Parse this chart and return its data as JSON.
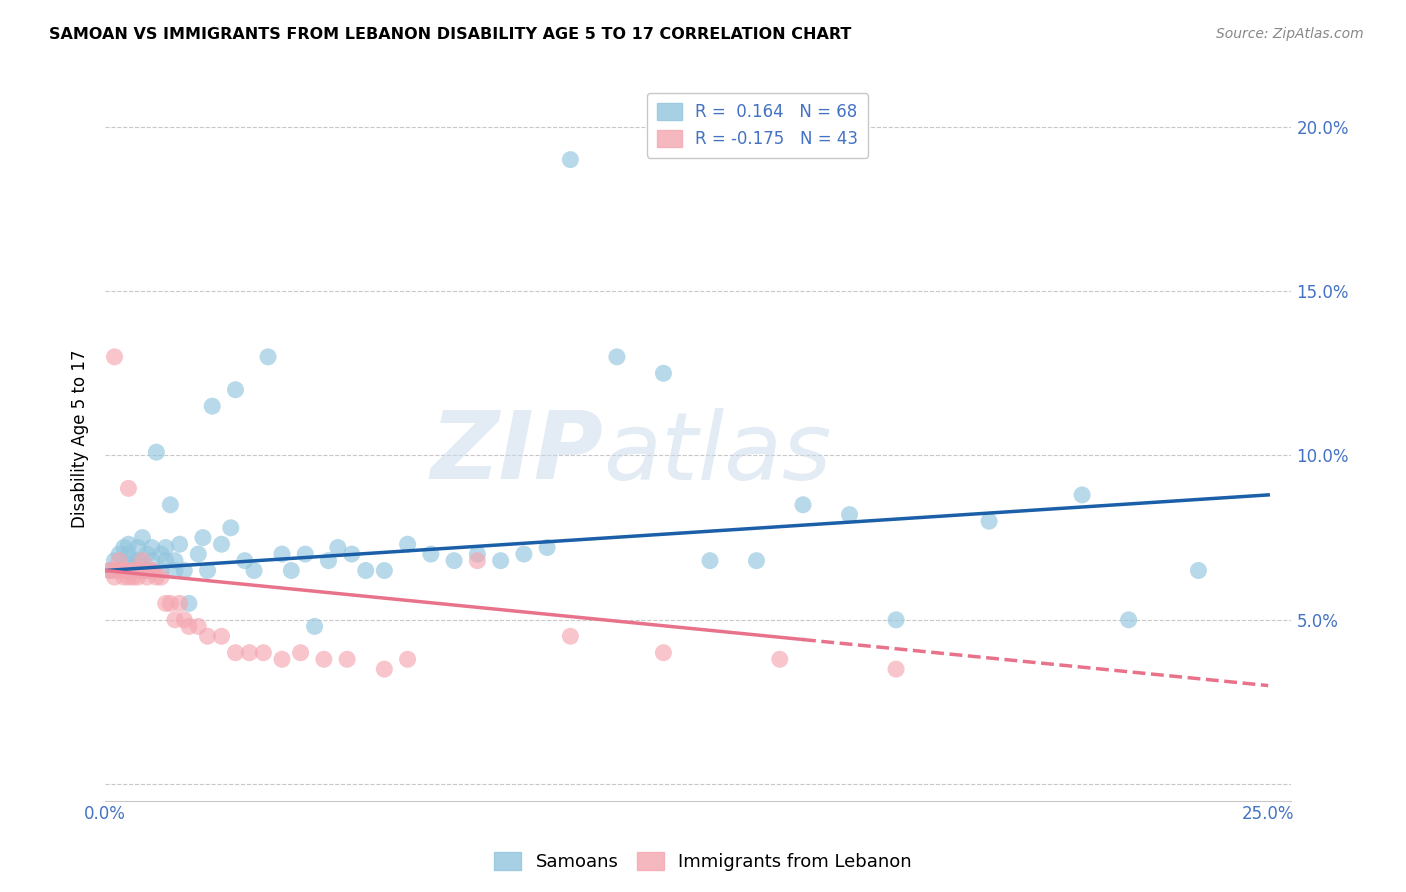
{
  "title": "SAMOAN VS IMMIGRANTS FROM LEBANON DISABILITY AGE 5 TO 17 CORRELATION CHART",
  "source": "Source: ZipAtlas.com",
  "ylabel": "Disability Age 5 to 17",
  "xlim": [
    0.0,
    0.255
  ],
  "ylim": [
    -0.005,
    0.215
  ],
  "yticks": [
    0.0,
    0.05,
    0.1,
    0.15,
    0.2
  ],
  "xticks": [
    0.0,
    0.05,
    0.1,
    0.15,
    0.2,
    0.25
  ],
  "xtick_labels": [
    "0.0%",
    "",
    "",
    "",
    "",
    "25.0%"
  ],
  "ytick_labels": [
    "",
    "5.0%",
    "10.0%",
    "15.0%",
    "20.0%"
  ],
  "legend_samoan": "R =  0.164   N = 68",
  "legend_lebanon": "R = -0.175   N = 43",
  "samoan_color": "#92c5de",
  "lebanon_color": "#f4a6b0",
  "trendline_samoan_color": "#1a5fa8",
  "trendline_lebanon_color": "#e8728a",
  "watermark_zip": "ZIP",
  "watermark_atlas": "atlas",
  "background_color": "#ffffff",
  "grid_color": "#c8c8c8",
  "tick_color": "#4472c4",
  "title_color": "#000000",
  "source_color": "#888888",
  "samoan_x": [
    0.001,
    0.002,
    0.003,
    0.004,
    0.004,
    0.005,
    0.005,
    0.005,
    0.006,
    0.006,
    0.007,
    0.007,
    0.007,
    0.008,
    0.008,
    0.009,
    0.009,
    0.01,
    0.01,
    0.011,
    0.012,
    0.012,
    0.013,
    0.013,
    0.014,
    0.015,
    0.015,
    0.016,
    0.017,
    0.018,
    0.02,
    0.021,
    0.022,
    0.023,
    0.025,
    0.027,
    0.028,
    0.03,
    0.032,
    0.035,
    0.038,
    0.04,
    0.043,
    0.045,
    0.048,
    0.05,
    0.053,
    0.056,
    0.06,
    0.065,
    0.07,
    0.075,
    0.08,
    0.085,
    0.09,
    0.095,
    0.1,
    0.11,
    0.12,
    0.13,
    0.14,
    0.15,
    0.16,
    0.17,
    0.19,
    0.21,
    0.22,
    0.235
  ],
  "samoan_y": [
    0.065,
    0.068,
    0.07,
    0.072,
    0.065,
    0.073,
    0.067,
    0.07,
    0.068,
    0.065,
    0.072,
    0.065,
    0.068,
    0.075,
    0.065,
    0.07,
    0.065,
    0.068,
    0.072,
    0.101,
    0.065,
    0.07,
    0.068,
    0.072,
    0.085,
    0.068,
    0.065,
    0.073,
    0.065,
    0.055,
    0.07,
    0.075,
    0.065,
    0.115,
    0.073,
    0.078,
    0.12,
    0.068,
    0.065,
    0.13,
    0.07,
    0.065,
    0.07,
    0.048,
    0.068,
    0.072,
    0.07,
    0.065,
    0.065,
    0.073,
    0.07,
    0.068,
    0.07,
    0.068,
    0.07,
    0.072,
    0.19,
    0.13,
    0.125,
    0.068,
    0.068,
    0.085,
    0.082,
    0.05,
    0.08,
    0.088,
    0.05,
    0.065
  ],
  "lebanon_x": [
    0.001,
    0.002,
    0.002,
    0.003,
    0.003,
    0.004,
    0.004,
    0.005,
    0.005,
    0.006,
    0.006,
    0.007,
    0.007,
    0.008,
    0.008,
    0.009,
    0.01,
    0.01,
    0.011,
    0.012,
    0.013,
    0.014,
    0.015,
    0.016,
    0.017,
    0.018,
    0.02,
    0.022,
    0.025,
    0.028,
    0.031,
    0.034,
    0.038,
    0.042,
    0.047,
    0.052,
    0.06,
    0.065,
    0.08,
    0.1,
    0.12,
    0.145,
    0.17
  ],
  "lebanon_y": [
    0.065,
    0.065,
    0.063,
    0.065,
    0.068,
    0.063,
    0.065,
    0.063,
    0.065,
    0.063,
    0.065,
    0.063,
    0.065,
    0.068,
    0.065,
    0.063,
    0.065,
    0.065,
    0.063,
    0.063,
    0.055,
    0.055,
    0.05,
    0.055,
    0.05,
    0.048,
    0.048,
    0.045,
    0.045,
    0.04,
    0.04,
    0.04,
    0.038,
    0.04,
    0.038,
    0.038,
    0.035,
    0.038,
    0.068,
    0.045,
    0.04,
    0.038,
    0.035
  ],
  "lebanon_outlier_x": [
    0.002
  ],
  "lebanon_outlier_y": [
    0.13
  ],
  "lebanon_mid_x": [
    0.005
  ],
  "lebanon_mid_y": [
    0.09
  ],
  "trendline_samoan_x0": 0.0,
  "trendline_samoan_x1": 0.25,
  "trendline_samoan_y0": 0.065,
  "trendline_samoan_y1": 0.088,
  "trendline_lebanon_x0": 0.0,
  "trendline_lebanon_x1": 0.25,
  "trendline_lebanon_y0": 0.065,
  "trendline_lebanon_y1": 0.03,
  "trendline_lebanon_solid_end": 0.15
}
